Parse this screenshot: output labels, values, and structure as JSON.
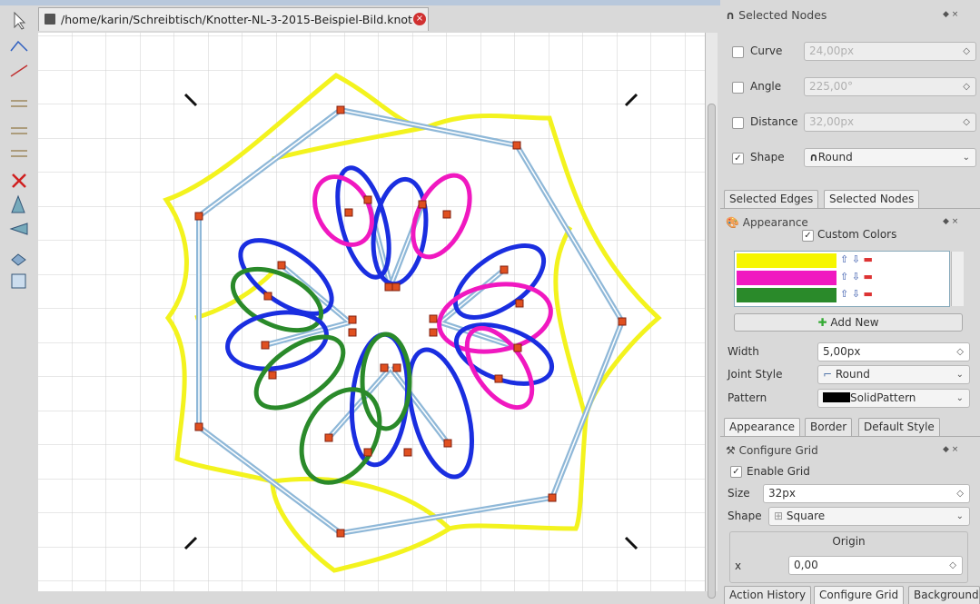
{
  "document_tab": {
    "title": "/home/karin/Schreibtisch/Knotter-NL-3-2015-Beispiel-Bild.knot"
  },
  "selected_nodes_panel": {
    "title": "Selected Nodes",
    "fields": [
      {
        "label": "Curve",
        "value": "24,00px"
      },
      {
        "label": "Angle",
        "value": "225,00°"
      },
      {
        "label": "Distance",
        "value": "32,00px"
      }
    ],
    "shape": {
      "label": "Shape",
      "value": "Round"
    }
  },
  "dock_tabs_1": [
    "Selected Edges",
    "Selected Nodes"
  ],
  "appearance_panel": {
    "title": "Appearance",
    "custom_colors": "Custom Colors",
    "add_new": "Add New",
    "width": {
      "label": "Width",
      "value": "5,00px"
    },
    "joint_style": {
      "label": "Joint Style",
      "value": "Round"
    },
    "pattern": {
      "label": "Pattern",
      "value": "SolidPattern"
    }
  },
  "dock_tabs_2": [
    "Appearance",
    "Border",
    "Default Style"
  ],
  "grid_panel": {
    "title": "Configure Grid",
    "enable": "Enable Grid",
    "size": {
      "label": "Size",
      "value": "32px"
    },
    "shape": {
      "label": "Shape",
      "value": "Square"
    },
    "origin": "Origin",
    "x": {
      "label": "x",
      "value": "0,00"
    }
  },
  "dock_tabs_3": [
    "Action History",
    "Configure Grid",
    "Background"
  ]
}
